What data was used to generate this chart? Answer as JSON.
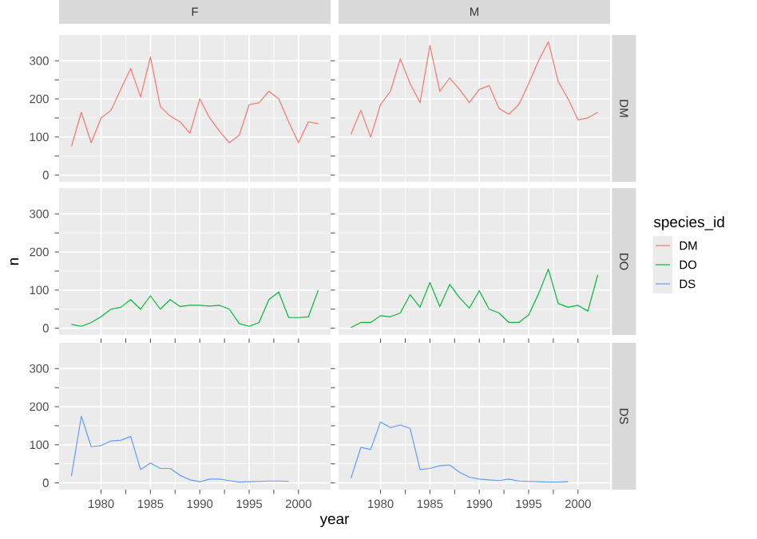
{
  "chart_data": [
    {
      "type": "line",
      "title": "F",
      "x": [
        1977,
        1978,
        1979,
        1980,
        1981,
        1982,
        1983,
        1984,
        1985,
        1986,
        1987,
        1988,
        1989,
        1990,
        1991,
        1992,
        1993,
        1994,
        1995,
        1996,
        1997,
        1998,
        1999,
        2000,
        2001,
        2002
      ],
      "series": [
        {
          "color": "#f8766d",
          "values": [
            75,
            165,
            85,
            150,
            170,
            225,
            280,
            205,
            310,
            180,
            155,
            140,
            110,
            200,
            150,
            115,
            85,
            105,
            185,
            190,
            220,
            200,
            140,
            85,
            140,
            135
          ]
        }
      ],
      "xlim": [
        1975.75,
        2003.25
      ],
      "ylim": [
        -17.5,
        367.5
      ],
      "xticks": [
        1980,
        1985,
        1990,
        1995,
        2000
      ],
      "yticks": [
        0,
        100,
        200,
        300
      ],
      "grid": true,
      "tick_labels": "y"
    },
    {
      "type": "line",
      "title": "M",
      "y2label": "DM",
      "x": [
        1977,
        1978,
        1979,
        1980,
        1981,
        1982,
        1983,
        1984,
        1985,
        1986,
        1987,
        1988,
        1989,
        1990,
        1991,
        1992,
        1993,
        1994,
        1995,
        1996,
        1997,
        1998,
        1999,
        2000,
        2001,
        2002
      ],
      "series": [
        {
          "name": "DM",
          "color": "#f8766d",
          "values": [
            107,
            170,
            100,
            185,
            220,
            305,
            240,
            190,
            340,
            220,
            255,
            225,
            190,
            225,
            235,
            175,
            160,
            185,
            240,
            300,
            350,
            245,
            200,
            145,
            150,
            165
          ]
        }
      ],
      "xlim": [
        1975.75,
        2003.25
      ],
      "ylim": [
        -17.5,
        367.5
      ],
      "xticks": [
        1980,
        1985,
        1990,
        1995,
        2000
      ],
      "yticks": [
        0,
        100,
        200,
        300
      ],
      "grid": true,
      "tick_labels": false,
      "legend": "right"
    },
    {
      "type": "line",
      "ylabel": "n",
      "x": [
        1977,
        1978,
        1979,
        1980,
        1981,
        1982,
        1983,
        1984,
        1985,
        1986,
        1987,
        1988,
        1989,
        1990,
        1991,
        1992,
        1993,
        1994,
        1995,
        1996,
        1997,
        1998,
        1999,
        2000,
        2001,
        2002
      ],
      "series": [
        {
          "color": "#00ba38",
          "values": [
            10,
            5,
            15,
            30,
            50,
            55,
            75,
            50,
            85,
            50,
            75,
            57,
            60,
            60,
            58,
            60,
            50,
            12,
            5,
            15,
            75,
            95,
            28,
            28,
            30,
            100
          ]
        }
      ],
      "xlim": [
        1975.75,
        2003.25
      ],
      "ylim": [
        -17.5,
        367.5
      ],
      "xticks": [
        1980,
        1985,
        1990,
        1995,
        2000
      ],
      "yticks": [
        0,
        100,
        200,
        300
      ],
      "grid": true,
      "tick_labels": "y"
    },
    {
      "type": "line",
      "y2label": "DO",
      "legend_title": "species_id",
      "x": [
        1977,
        1978,
        1979,
        1980,
        1981,
        1982,
        1983,
        1984,
        1985,
        1986,
        1987,
        1988,
        1989,
        1990,
        1991,
        1992,
        1993,
        1994,
        1995,
        1996,
        1997,
        1998,
        1999,
        2000,
        2001,
        2002
      ],
      "series": [
        {
          "name": "DO",
          "color": "#00ba38",
          "values": [
            2,
            15,
            15,
            33,
            30,
            40,
            88,
            55,
            120,
            57,
            115,
            80,
            53,
            98,
            50,
            40,
            15,
            15,
            35,
            90,
            155,
            65,
            55,
            60,
            45,
            140
          ]
        }
      ],
      "xlim": [
        1975.75,
        2003.25
      ],
      "ylim": [
        -17.5,
        367.5
      ],
      "xticks": [
        1980,
        1985,
        1990,
        1995,
        2000
      ],
      "yticks": [
        0,
        100,
        200,
        300
      ],
      "grid": true,
      "tick_labels": false,
      "legend": "right"
    },
    {
      "type": "line",
      "xlabel": "year",
      "x": [
        1977,
        1978,
        1979,
        1980,
        1981,
        1982,
        1983,
        1984,
        1985,
        1986,
        1987,
        1988,
        1989,
        1990,
        1991,
        1992,
        1993,
        1994,
        1995,
        1996,
        1997,
        1998,
        1999
      ],
      "series": [
        {
          "color": "#619cff",
          "values": [
            18,
            175,
            95,
            98,
            110,
            112,
            122,
            35,
            52,
            38,
            38,
            20,
            8,
            3,
            10,
            10,
            6,
            2,
            3,
            4,
            5,
            5,
            4
          ]
        }
      ],
      "xlim": [
        1975.75,
        2003.25
      ],
      "ylim": [
        -17.5,
        367.5
      ],
      "xticks": [
        1980,
        1985,
        1990,
        1995,
        2000
      ],
      "yticks": [
        0,
        100,
        200,
        300
      ],
      "grid": true
    },
    {
      "type": "line",
      "y2label": "DS",
      "x": [
        1977,
        1978,
        1979,
        1980,
        1981,
        1982,
        1983,
        1984,
        1985,
        1986,
        1987,
        1988,
        1989,
        1990,
        1991,
        1992,
        1993,
        1994,
        1995,
        1996,
        1997,
        1998,
        1999
      ],
      "series": [
        {
          "name": "DS",
          "color": "#619cff",
          "values": [
            12,
            93,
            88,
            160,
            145,
            152,
            143,
            35,
            38,
            45,
            47,
            28,
            15,
            10,
            8,
            6,
            10,
            5,
            4,
            3,
            2,
            2,
            3
          ]
        }
      ],
      "xlim": [
        1975.75,
        2003.25
      ],
      "ylim": [
        -17.5,
        367.5
      ],
      "xticks": [
        1980,
        1985,
        1990,
        1995,
        2000
      ],
      "yticks": [
        0,
        100,
        200,
        300
      ],
      "grid": true,
      "tick_labels": "x",
      "legend": "right"
    }
  ]
}
